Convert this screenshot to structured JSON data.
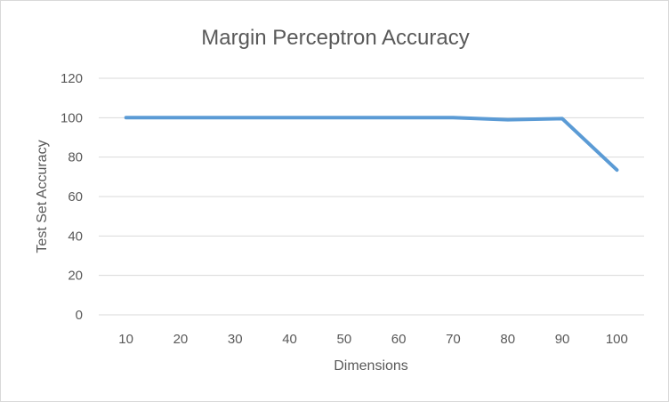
{
  "chart_data": {
    "type": "line",
    "title": "Margin Perceptron Accuracy",
    "xlabel": "Dimensions",
    "ylabel": "Test Set Accuracy",
    "categories": [
      "10",
      "20",
      "30",
      "40",
      "50",
      "60",
      "70",
      "80",
      "90",
      "100"
    ],
    "series": [
      {
        "values": [
          100,
          100,
          100,
          100,
          100,
          100,
          100,
          99,
          99.5,
          73.5
        ]
      }
    ],
    "ylim": [
      0,
      120
    ],
    "yticks": [
      0,
      20,
      40,
      60,
      80,
      100,
      120
    ],
    "grid": true,
    "legend": "none"
  },
  "colors": {
    "series": "#5b9bd5",
    "text": "#595959",
    "grid": "#d9d9d9"
  }
}
